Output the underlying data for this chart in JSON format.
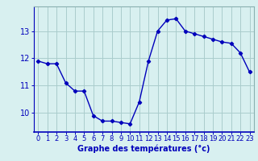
{
  "hours": [
    0,
    1,
    2,
    3,
    4,
    5,
    6,
    7,
    8,
    9,
    10,
    11,
    12,
    13,
    14,
    15,
    16,
    17,
    18,
    19,
    20,
    21,
    22,
    23
  ],
  "temperatures": [
    11.9,
    11.8,
    11.8,
    11.1,
    10.8,
    10.8,
    9.9,
    9.7,
    9.7,
    9.65,
    9.6,
    10.4,
    11.9,
    13.0,
    13.4,
    13.45,
    13.0,
    12.9,
    12.8,
    12.7,
    12.6,
    12.55,
    12.2,
    11.5
  ],
  "line_color": "#0000bb",
  "marker": "D",
  "marker_size": 2.2,
  "bg_color": "#d8f0f0",
  "grid_color": "#aacccc",
  "xlabel": "Graphe des températures (°c)",
  "xlabel_color": "#0000bb",
  "xlabel_fontsize": 7,
  "tick_color": "#0000bb",
  "tick_fontsize": 6,
  "ylim": [
    9.3,
    13.9
  ],
  "yticks": [
    10,
    11,
    12,
    13
  ],
  "xticks": [
    0,
    1,
    2,
    3,
    4,
    5,
    6,
    7,
    8,
    9,
    10,
    11,
    12,
    13,
    14,
    15,
    16,
    17,
    18,
    19,
    20,
    21,
    22,
    23
  ],
  "line_width": 1.0
}
